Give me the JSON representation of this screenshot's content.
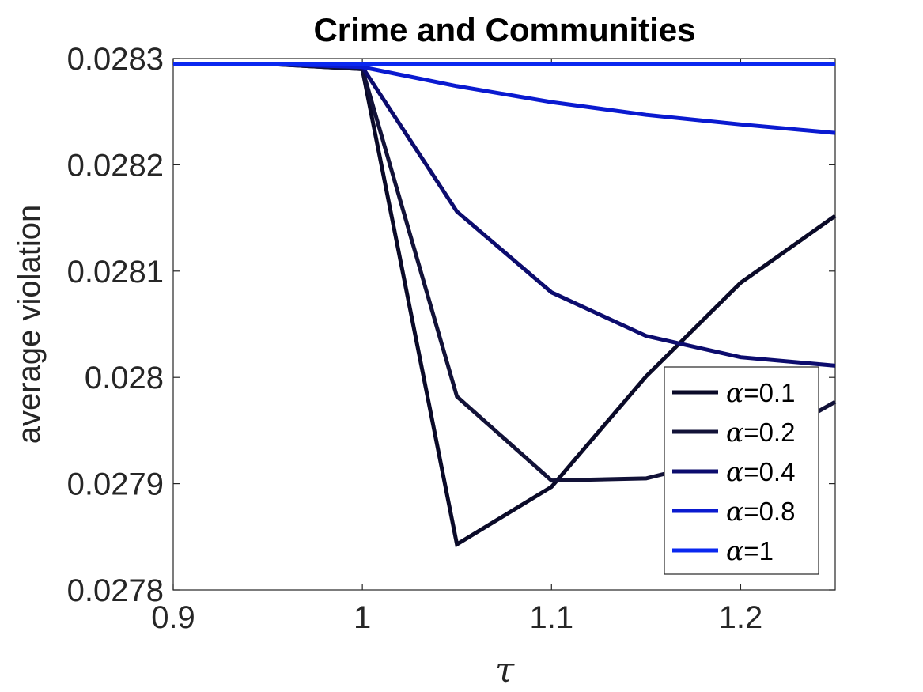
{
  "chart_data": {
    "type": "line",
    "title": "Crime and Communities",
    "xlabel": "τ",
    "ylabel": "average violation",
    "xlim": [
      0.9,
      1.25
    ],
    "ylim": [
      0.0278,
      0.0283
    ],
    "xticks": [
      0.9,
      1,
      1.1,
      1.2
    ],
    "xtick_labels": [
      "0.9",
      "1",
      "1.1",
      "1.2"
    ],
    "yticks": [
      0.0278,
      0.0279,
      0.028,
      0.0281,
      0.0282,
      0.0283
    ],
    "ytick_labels": [
      "0.0278",
      "0.0279",
      "0.028",
      "0.0281",
      "0.0282",
      "0.0283"
    ],
    "grid": false,
    "legend_position": "bottom-right",
    "x": [
      0.9,
      0.95,
      1.0,
      1.05,
      1.1,
      1.15,
      1.2,
      1.25
    ],
    "series": [
      {
        "name": "α=0.1",
        "legend_symbol": "α",
        "legend_value": "=0.1",
        "color": "#0a0a28",
        "values": [
          0.028295,
          0.028295,
          0.02829,
          0.027843,
          0.027897,
          0.028001,
          0.028089,
          0.028152
        ]
      },
      {
        "name": "α=0.2",
        "legend_symbol": "α",
        "legend_value": "=0.2",
        "color": "#121238",
        "values": [
          0.028295,
          0.028295,
          0.02829,
          0.027982,
          0.027903,
          0.027905,
          0.027927,
          0.027977
        ]
      },
      {
        "name": "α=0.4",
        "legend_symbol": "α",
        "legend_value": "=0.4",
        "color": "#0c0c6e",
        "values": [
          0.028295,
          0.028295,
          0.028292,
          0.028156,
          0.02808,
          0.028039,
          0.028019,
          0.028011
        ]
      },
      {
        "name": "α=0.8",
        "legend_symbol": "α",
        "legend_value": "=0.8",
        "color": "#0a1ad0",
        "values": [
          0.028295,
          0.028295,
          0.028292,
          0.028274,
          0.028259,
          0.028247,
          0.028238,
          0.02823
        ]
      },
      {
        "name": "α=1",
        "legend_symbol": "α",
        "legend_value": "=1",
        "color": "#0a28f0",
        "values": [
          0.028295,
          0.028295,
          0.028295,
          0.028295,
          0.028295,
          0.028295,
          0.028295,
          0.028295
        ]
      }
    ]
  }
}
